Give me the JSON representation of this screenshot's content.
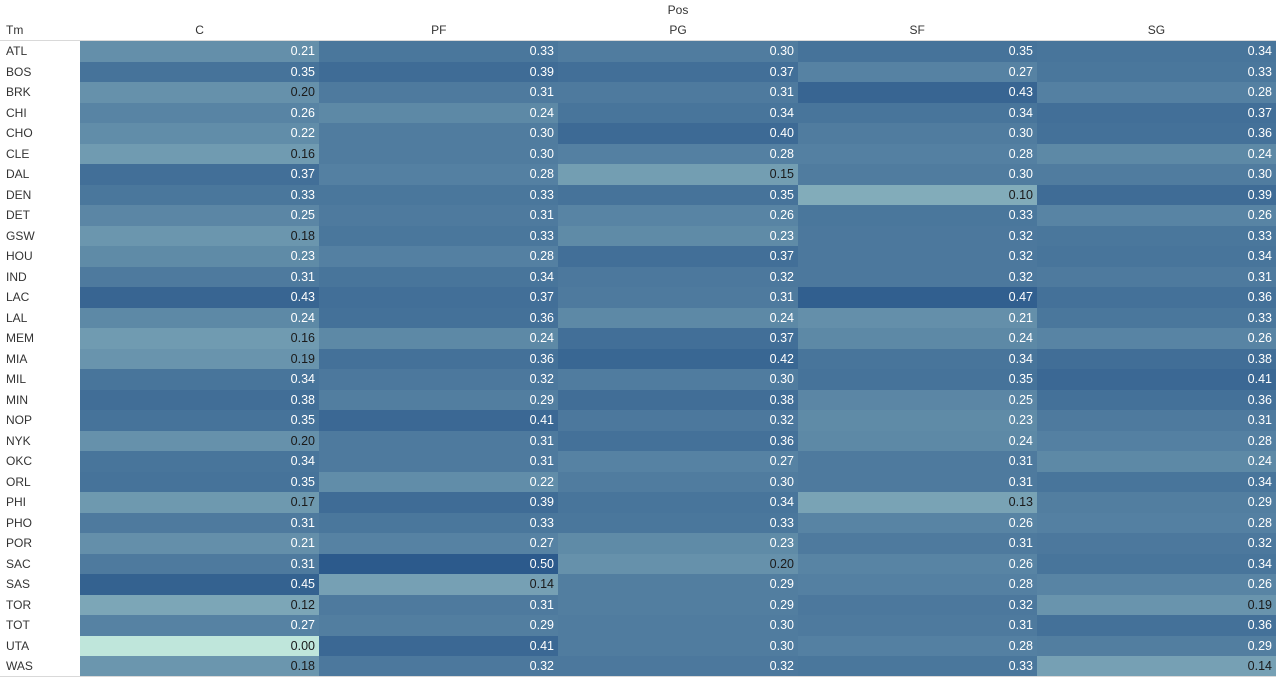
{
  "chart_data": {
    "type": "heatmap",
    "column_title": "Pos",
    "row_header": "Tm",
    "columns": [
      "C",
      "PF",
      "PG",
      "SF",
      "SG"
    ],
    "rows": [
      "ATL",
      "BOS",
      "BRK",
      "CHI",
      "CHO",
      "CLE",
      "DAL",
      "DEN",
      "DET",
      "GSW",
      "HOU",
      "IND",
      "LAC",
      "LAL",
      "MEM",
      "MIA",
      "MIL",
      "MIN",
      "NOP",
      "NYK",
      "OKC",
      "ORL",
      "PHI",
      "PHO",
      "POR",
      "SAC",
      "SAS",
      "TOR",
      "TOT",
      "UTA",
      "WAS"
    ],
    "values": [
      [
        0.21,
        0.33,
        0.3,
        0.35,
        0.34
      ],
      [
        0.35,
        0.39,
        0.37,
        0.27,
        0.33
      ],
      [
        0.2,
        0.31,
        0.31,
        0.43,
        0.28
      ],
      [
        0.26,
        0.24,
        0.34,
        0.34,
        0.37
      ],
      [
        0.22,
        0.3,
        0.4,
        0.3,
        0.36
      ],
      [
        0.16,
        0.3,
        0.28,
        0.28,
        0.24
      ],
      [
        0.37,
        0.28,
        0.15,
        0.3,
        0.3
      ],
      [
        0.33,
        0.33,
        0.35,
        0.1,
        0.39
      ],
      [
        0.25,
        0.31,
        0.26,
        0.33,
        0.26
      ],
      [
        0.18,
        0.33,
        0.23,
        0.32,
        0.33
      ],
      [
        0.23,
        0.28,
        0.37,
        0.32,
        0.34
      ],
      [
        0.31,
        0.34,
        0.32,
        0.32,
        0.31
      ],
      [
        0.43,
        0.37,
        0.31,
        0.47,
        0.36
      ],
      [
        0.24,
        0.36,
        0.24,
        0.21,
        0.33
      ],
      [
        0.16,
        0.24,
        0.37,
        0.24,
        0.26
      ],
      [
        0.19,
        0.36,
        0.42,
        0.34,
        0.38
      ],
      [
        0.34,
        0.32,
        0.3,
        0.35,
        0.41
      ],
      [
        0.38,
        0.29,
        0.38,
        0.25,
        0.36
      ],
      [
        0.35,
        0.41,
        0.32,
        0.23,
        0.31
      ],
      [
        0.2,
        0.31,
        0.36,
        0.24,
        0.28
      ],
      [
        0.34,
        0.31,
        0.27,
        0.31,
        0.24
      ],
      [
        0.35,
        0.22,
        0.3,
        0.31,
        0.34
      ],
      [
        0.17,
        0.39,
        0.34,
        0.13,
        0.29
      ],
      [
        0.31,
        0.33,
        0.33,
        0.26,
        0.28
      ],
      [
        0.21,
        0.27,
        0.23,
        0.31,
        0.32
      ],
      [
        0.31,
        0.5,
        0.2,
        0.26,
        0.34
      ],
      [
        0.45,
        0.14,
        0.29,
        0.28,
        0.26
      ],
      [
        0.12,
        0.31,
        0.29,
        0.32,
        0.19
      ],
      [
        0.27,
        0.29,
        0.3,
        0.31,
        0.36
      ],
      [
        0.0,
        0.41,
        0.3,
        0.28,
        0.29
      ],
      [
        0.18,
        0.32,
        0.32,
        0.33,
        0.14
      ]
    ],
    "value_range": [
      0.0,
      0.5
    ],
    "color_scale": [
      "#bfe6db",
      "#2c5a8c"
    ],
    "grid": false
  }
}
